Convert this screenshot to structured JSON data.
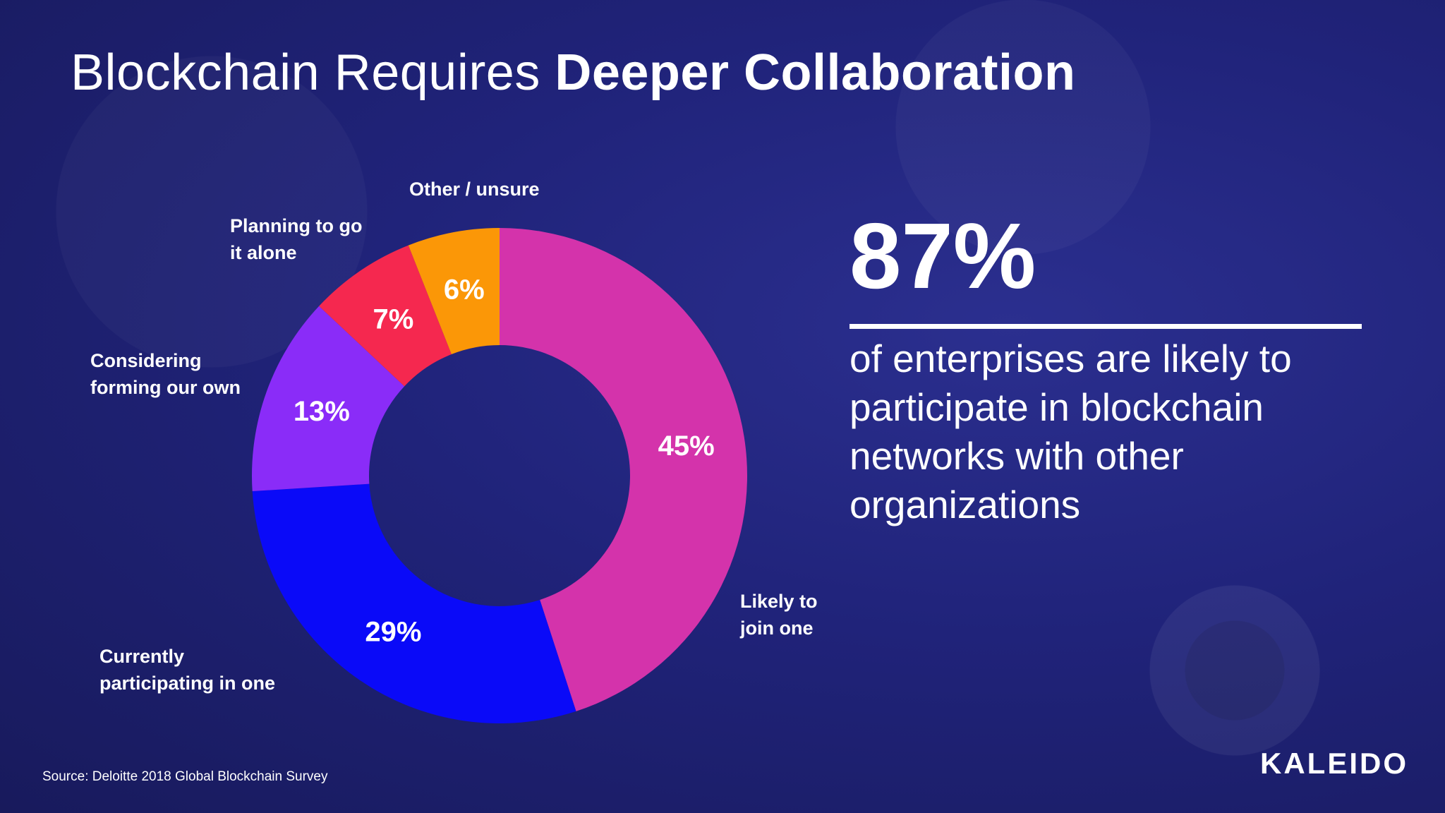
{
  "slide": {
    "title_regular": "Blockchain Requires ",
    "title_bold": "Deeper Collaboration",
    "headline_value": "87%",
    "statement": "of enterprises are likely to participate in blockchain networks with other organizations",
    "source": "Source:  Deloitte 2018 Global Blockchain Survey",
    "brand": "KALEIDO"
  },
  "chart_data": {
    "type": "pie",
    "style": "donut",
    "start": "top",
    "direction": "clockwise",
    "slices": [
      {
        "label": "Likely to join one",
        "label_lines": [
          "Likely to",
          "join one"
        ],
        "value": 45,
        "value_label": "45%",
        "color": "#d433ab"
      },
      {
        "label": "Currently participating in one",
        "label_lines": [
          "Currently",
          "participating in one"
        ],
        "value": 29,
        "value_label": "29%",
        "color": "#0a0af8"
      },
      {
        "label": "Considering forming our own",
        "label_lines": [
          "Considering",
          "forming our own"
        ],
        "value": 13,
        "value_label": "13%",
        "color": "#8a2cf8"
      },
      {
        "label": "Planning to go it alone",
        "label_lines": [
          "Planning to go",
          "it alone"
        ],
        "value": 7,
        "value_label": "7%",
        "color": "#f5284f"
      },
      {
        "label": "Other / unsure",
        "label_lines": [
          "Other / unsure"
        ],
        "value": 6,
        "value_label": "6%",
        "color": "#fb9707"
      }
    ]
  }
}
